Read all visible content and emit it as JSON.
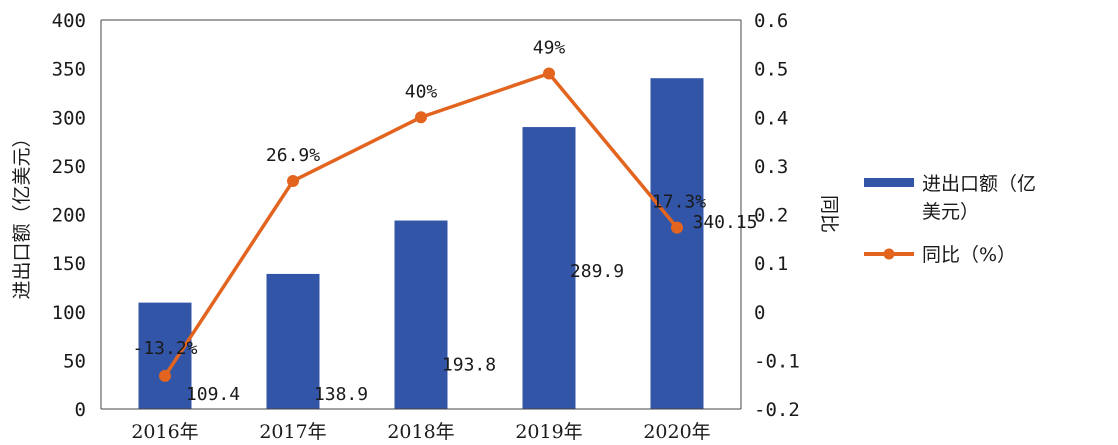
{
  "chart_data": {
    "type": "bar",
    "categories": [
      "2016年",
      "2017年",
      "2018年",
      "2019年",
      "2020年"
    ],
    "series": [
      {
        "name": "进出口额（亿美元）",
        "type": "bar",
        "axis": "left",
        "values": [
          109.4,
          138.9,
          193.8,
          289.9,
          340.15
        ],
        "labels": [
          "109.4",
          "138.9",
          "193.8",
          "289.9",
          "340.15"
        ],
        "color": "#3355a8"
      },
      {
        "name": "同比（%）",
        "type": "line",
        "axis": "right",
        "values": [
          -0.132,
          0.269,
          0.4,
          0.49,
          0.173
        ],
        "labels": [
          "-13.2%",
          "26.9%",
          "40%",
          "49%",
          "17.3%"
        ],
        "color": "#e2641f"
      }
    ],
    "ylabel": "进出口额（亿美元）",
    "y2label": "同比",
    "ylim": [
      0,
      400
    ],
    "yticks": [
      "0",
      "50",
      "100",
      "150",
      "200",
      "250",
      "300",
      "350",
      "400"
    ],
    "y2lim": [
      -0.2,
      0.6
    ],
    "y2ticks": [
      "-0.2",
      "-0.1",
      "0",
      "0.1",
      "0.2",
      "0.3",
      "0.4",
      "0.5",
      "0.6"
    ],
    "legend": {
      "position": "right",
      "bar_label_line1": "进出口额（亿",
      "bar_label_line2": "美元）",
      "line_label": "同比（%）"
    },
    "grid": false
  }
}
